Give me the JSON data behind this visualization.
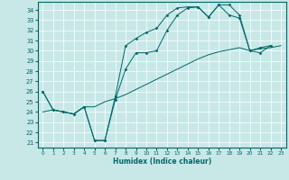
{
  "xlabel": "Humidex (Indice chaleur)",
  "bg_color": "#c8e8e8",
  "line_color": "#006666",
  "grid_color": "#ffffff",
  "xlim": [
    -0.5,
    23.5
  ],
  "ylim": [
    20.5,
    34.8
  ],
  "yticks": [
    21,
    22,
    23,
    24,
    25,
    26,
    27,
    28,
    29,
    30,
    31,
    32,
    33,
    34
  ],
  "xticks": [
    0,
    1,
    2,
    3,
    4,
    5,
    6,
    7,
    8,
    9,
    10,
    11,
    12,
    13,
    14,
    15,
    16,
    17,
    18,
    19,
    20,
    21,
    22,
    23
  ],
  "line1_x": [
    0,
    1,
    2,
    3,
    4,
    5,
    6,
    7,
    8,
    9,
    10,
    11,
    12,
    13,
    14,
    15,
    16,
    17,
    18,
    19,
    20,
    21,
    22
  ],
  "line1_y": [
    26.0,
    24.2,
    24.0,
    23.8,
    24.5,
    21.2,
    21.2,
    25.2,
    28.2,
    29.8,
    29.8,
    30.0,
    32.0,
    33.5,
    34.2,
    34.3,
    33.3,
    34.5,
    33.5,
    33.2,
    30.0,
    30.3,
    30.5
  ],
  "line2_x": [
    0,
    1,
    2,
    3,
    4,
    5,
    6,
    7,
    8,
    9,
    10,
    11,
    12,
    13,
    14,
    15,
    16,
    17,
    18,
    19,
    20,
    21,
    22,
    23
  ],
  "line2_y": [
    24.0,
    24.2,
    24.0,
    23.8,
    24.5,
    24.5,
    25.0,
    25.3,
    25.7,
    26.2,
    26.7,
    27.2,
    27.7,
    28.2,
    28.7,
    29.2,
    29.6,
    29.9,
    30.1,
    30.3,
    30.0,
    30.2,
    30.3,
    30.5
  ],
  "line3_x": [
    0,
    1,
    2,
    3,
    4,
    5,
    6,
    7,
    8,
    9,
    10,
    11,
    12,
    13,
    14,
    15,
    16,
    17,
    18,
    19,
    20,
    21,
    22
  ],
  "line3_y": [
    26.0,
    24.2,
    24.0,
    23.8,
    24.5,
    21.2,
    21.2,
    25.5,
    30.5,
    31.2,
    31.8,
    32.2,
    33.5,
    34.2,
    34.3,
    34.3,
    33.3,
    34.5,
    34.5,
    33.5,
    30.0,
    29.8,
    30.5
  ]
}
